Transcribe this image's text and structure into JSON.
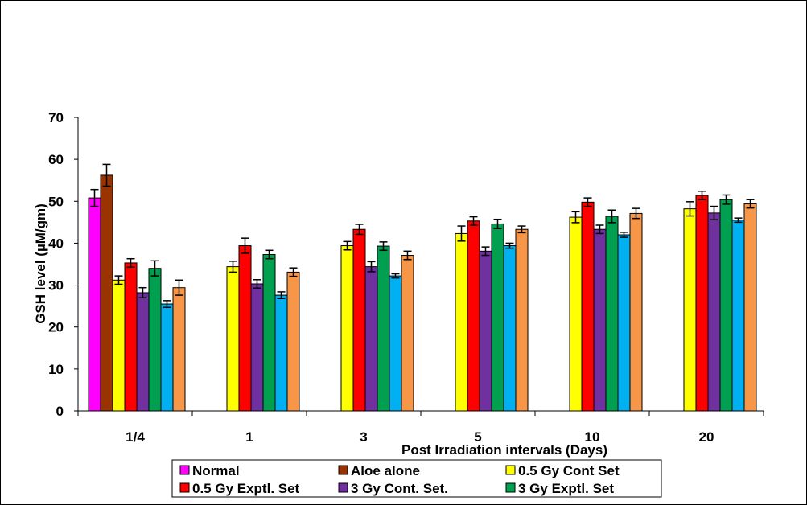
{
  "chart_data": {
    "type": "bar",
    "title": "",
    "xlabel": "Post Irradiation  intervals (Days)",
    "ylabel": "GSH level (µM/gm)",
    "ylim": [
      0,
      70
    ],
    "yticks": [
      0,
      10,
      20,
      30,
      40,
      50,
      60,
      70
    ],
    "grid": false,
    "legend_position": "bottom",
    "categories": [
      "1/4",
      "1",
      "3",
      "5",
      "10",
      "20"
    ],
    "series": [
      {
        "name": "Normal",
        "color": "#FF00FF",
        "values": [
          50.8,
          null,
          null,
          null,
          null,
          null
        ],
        "errors": [
          2.0,
          null,
          null,
          null,
          null,
          null
        ]
      },
      {
        "name": "Aloe alone",
        "color": "#993300",
        "values": [
          56.2,
          null,
          null,
          null,
          null,
          null
        ],
        "errors": [
          2.6,
          null,
          null,
          null,
          null,
          null
        ]
      },
      {
        "name": "0.5 Gy Cont Set",
        "color": "#FFFF00",
        "values": [
          31.2,
          34.4,
          39.4,
          42.3,
          46.2,
          48.2
        ],
        "errors": [
          1.0,
          1.3,
          1.0,
          1.8,
          1.3,
          1.7
        ]
      },
      {
        "name": "0.5 Gy Exptl. Set",
        "color": "#FF0000",
        "values": [
          35.3,
          39.4,
          43.3,
          45.3,
          49.8,
          51.4
        ],
        "errors": [
          1.0,
          1.8,
          1.2,
          1.0,
          1.0,
          1.0
        ]
      },
      {
        "name": "3 Gy Cont. Set.",
        "color": "#7030A0",
        "values": [
          28.2,
          30.3,
          34.4,
          38.1,
          43.3,
          47.2
        ],
        "errors": [
          1.2,
          1.0,
          1.2,
          1.0,
          1.0,
          1.6
        ]
      },
      {
        "name": "3 Gy Exptl. Set",
        "color": "#00A050",
        "values": [
          34.0,
          37.3,
          39.3,
          44.6,
          46.4,
          50.4
        ],
        "errors": [
          1.8,
          1.0,
          1.0,
          1.1,
          1.5,
          1.1
        ]
      },
      {
        "name": "",
        "color": "#00B0F0",
        "values": [
          25.5,
          27.6,
          32.2,
          39.4,
          42.0,
          45.5
        ],
        "errors": [
          0.8,
          0.8,
          0.5,
          0.6,
          0.6,
          0.5
        ]
      },
      {
        "name": "",
        "color": "#F79646",
        "values": [
          29.4,
          33.1,
          37.1,
          43.3,
          47.1,
          49.4
        ],
        "errors": [
          1.8,
          1.0,
          1.0,
          0.8,
          1.2,
          1.0
        ]
      }
    ],
    "legend": [
      "Normal",
      "Aloe alone",
      "0.5 Gy Cont Set",
      "0.5 Gy Exptl. Set",
      "3 Gy Cont. Set.",
      "3 Gy Exptl. Set"
    ]
  }
}
